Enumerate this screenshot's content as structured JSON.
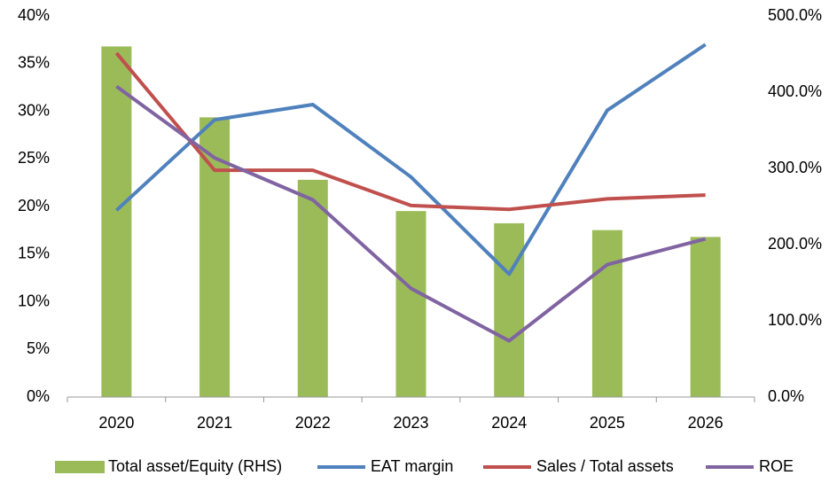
{
  "chart_data": {
    "type": "combo",
    "categories": [
      "2020",
      "2021",
      "2022",
      "2023",
      "2024",
      "2025",
      "2026"
    ],
    "series": [
      {
        "name": "Total asset/Equity (RHS)",
        "type": "bar",
        "axis": "y2",
        "color": "#9bbb59",
        "values": [
          460,
          367,
          285,
          244,
          228,
          219,
          210
        ]
      },
      {
        "name": "EAT margin",
        "type": "line",
        "color": "#4f81bd",
        "values": [
          19.6,
          29.1,
          30.7,
          23.1,
          12.9,
          30.1,
          37.0
        ]
      },
      {
        "name": "Sales / Total assets",
        "type": "line",
        "color": "#c0504d",
        "values": [
          36.1,
          23.8,
          23.8,
          20.1,
          19.7,
          20.8,
          21.2
        ]
      },
      {
        "name": "ROE",
        "type": "line",
        "color": "#8064a2",
        "values": [
          32.6,
          25.1,
          20.7,
          11.4,
          5.9,
          13.9,
          16.6
        ]
      }
    ],
    "ylim": [
      0,
      40
    ],
    "yticks": [
      {
        "value": 0,
        "label": "0%"
      },
      {
        "value": 5,
        "label": "5%"
      },
      {
        "value": 10,
        "label": "10%"
      },
      {
        "value": 15,
        "label": "15%"
      },
      {
        "value": 20,
        "label": "20%"
      },
      {
        "value": 25,
        "label": "25%"
      },
      {
        "value": 30,
        "label": "30%"
      },
      {
        "value": 35,
        "label": "35%"
      },
      {
        "value": 40,
        "label": "40%"
      }
    ],
    "y2lim": [
      0,
      500
    ],
    "y2ticks": [
      {
        "value": 0,
        "label": "0.0%"
      },
      {
        "value": 100,
        "label": "100.0%"
      },
      {
        "value": 200,
        "label": "200.0%"
      },
      {
        "value": 300,
        "label": "300.0%"
      },
      {
        "value": 400,
        "label": "400.0%"
      },
      {
        "value": 500,
        "label": "500.0%"
      }
    ],
    "legend": "bottom"
  }
}
